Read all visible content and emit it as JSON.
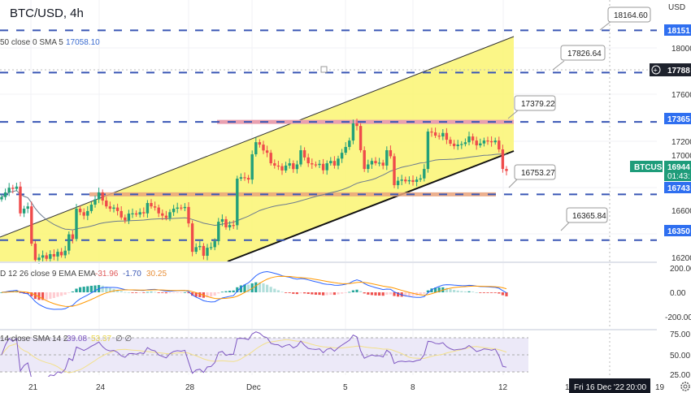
{
  "header": {
    "title": "BTC/USD, 4h",
    "sma_legend": "50 close 0 SMA 5",
    "sma_value": "17058.10"
  },
  "colors": {
    "up": "#22a07a",
    "down": "#ef4b4b",
    "level": "#3a57b5",
    "channel_fill": "#fbf57a",
    "band": "#e9a0b0",
    "tag_blue": "#2f6ff0",
    "tag_green": "#1e9c7a",
    "tag_dark": "#1e222d"
  },
  "price_axis": {
    "currency": "USD",
    "ticks": [
      "18000.00",
      "17600.00",
      "17200.00",
      "17000.00",
      "16600.00",
      "16200.00"
    ],
    "tags": {
      "l18151": "18151",
      "l17788": "17788",
      "l17365": "17365",
      "current": "16944",
      "countdown": "01:43:",
      "l16743": "16743",
      "l16350": "16350"
    },
    "symbol_tag": "BTCUSD"
  },
  "callouts": {
    "c1": "18164.60",
    "c2": "17826.64",
    "c3": "17379.22",
    "c4": "16753.27",
    "c5": "16365.84"
  },
  "macd": {
    "legend": "D 12 26 close 9 EMA EMA",
    "v1": "-31.96",
    "v2": "-1.70",
    "v3": "30.25",
    "ticks": [
      "200.00",
      "0.00",
      "-200.00"
    ]
  },
  "rsi": {
    "legend": "14 close SMA 14 2",
    "v1": "39.08",
    "v2": "53.37",
    "v3": "∅ ∅",
    "ticks": [
      "75.00",
      "50.00",
      "25.00"
    ]
  },
  "time_axis": {
    "ticks": [
      "21",
      "24",
      "28",
      "Dec",
      "5",
      "8",
      "12",
      "1",
      "19"
    ],
    "crosshair_label": "Fri 16 Dec '22",
    "crosshair_time": "20:00"
  },
  "chart_data": {
    "type": "candlestick",
    "title": "BTC/USD, 4h",
    "ylim": [
      16150,
      18250
    ],
    "levels": [
      18151,
      17788,
      17365,
      16743,
      16350
    ],
    "annotated_levels": [
      18164.6,
      17826.64,
      17379.22,
      16753.27,
      16365.84
    ],
    "close": [
      16720,
      16760,
      16800,
      16790,
      16810,
      16580,
      16620,
      16640,
      16320,
      16180,
      16200,
      16220,
      16190,
      16230,
      16210,
      16250,
      16220,
      16260,
      16400,
      16360,
      16620,
      16590,
      16560,
      16600,
      16655,
      16700,
      16760,
      16690,
      16640,
      16620,
      16630,
      16600,
      16545,
      16520,
      16578,
      16580,
      16570,
      16590,
      16580,
      16669,
      16640,
      16630,
      16580,
      16560,
      16540,
      16590,
      16620,
      16630,
      16625,
      16635,
      16494,
      16250,
      16290,
      16300,
      16216,
      16285,
      16290,
      16341,
      16508,
      16530,
      16460,
      16480,
      16478,
      16878,
      16890,
      16885,
      16870,
      17087,
      17191,
      17170,
      17120,
      17100,
      17010,
      16990,
      16985,
      16948,
      16990,
      17010,
      16960,
      17000,
      17122,
      17060,
      17010,
      17000,
      16995,
      17005,
      16950,
      17010,
      17030,
      16990,
      17050,
      17100,
      17150,
      17205,
      17352,
      17330,
      17122,
      16961,
      17000,
      17030,
      17010,
      17015,
      16990,
      17122,
      17070,
      16822,
      16860,
      16870,
      16855,
      16865,
      16850,
      16870,
      16880,
      16961,
      17282,
      17275,
      17247,
      17240,
      17270,
      17212,
      17178,
      17157,
      17170,
      17175,
      17190,
      17240,
      17205,
      17164,
      17180,
      17205,
      17200,
      17190,
      17205,
      17129,
      16961,
      16944
    ]
  }
}
